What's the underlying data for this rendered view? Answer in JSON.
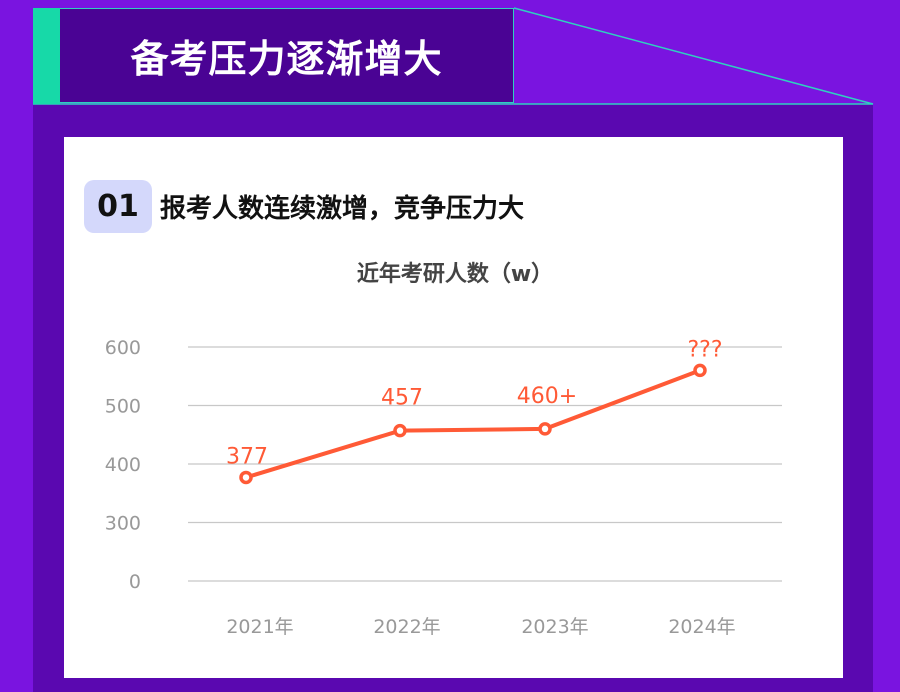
{
  "header": {
    "title": "备考压力逐渐增大"
  },
  "section": {
    "number": "01",
    "title": "报考人数连续激增，竞争压力大"
  },
  "colors": {
    "background": "#7a14e0",
    "header_box": "#4a0394",
    "accent_teal": "#17d9a8",
    "panel": "#5a08b0",
    "line": "#ff5a36",
    "badge": "#d4d8fb"
  },
  "chart_data": {
    "type": "line",
    "title": "近年考研人数（w）",
    "categories": [
      "2021年",
      "2022年",
      "2023年",
      "2024年"
    ],
    "values": [
      377,
      457,
      460,
      560
    ],
    "data_labels": [
      "377",
      "457",
      "460+",
      "???"
    ],
    "yticks": [
      0,
      300,
      400,
      500,
      600
    ],
    "ylim": [
      0,
      600
    ],
    "grid": true,
    "xlabel": "",
    "ylabel": ""
  }
}
